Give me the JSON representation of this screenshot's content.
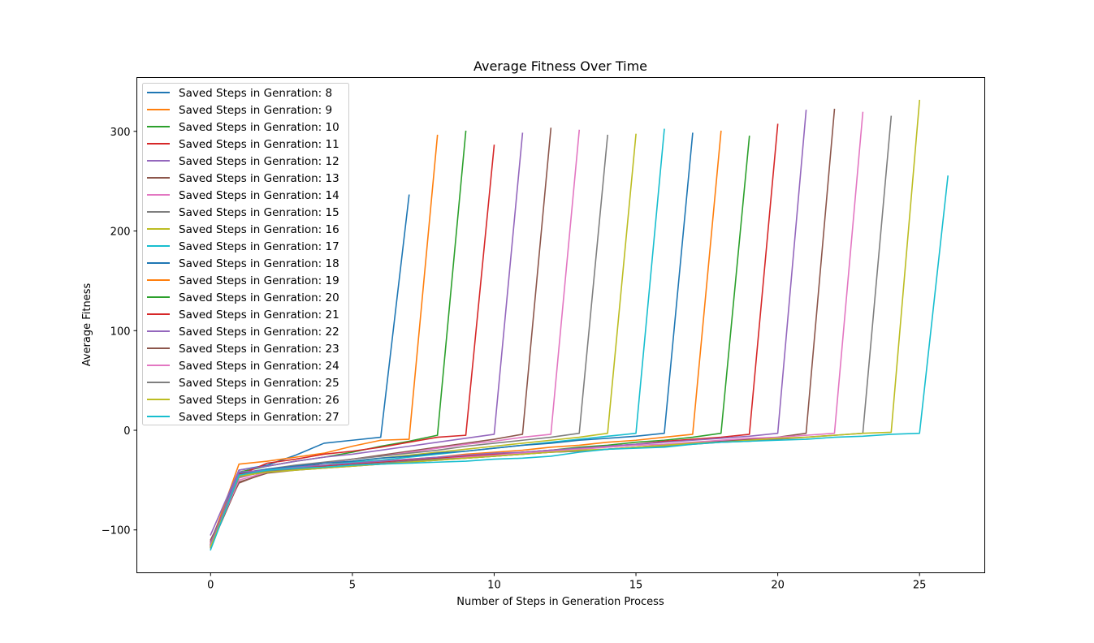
{
  "chart_data": {
    "type": "line",
    "title": "Average Fitness Over Time",
    "xlabel": "Number of Steps in Generation Process",
    "ylabel": "Average Fitness",
    "xlim": [
      -2.6,
      27.3
    ],
    "ylim": [
      -143,
      354
    ],
    "xticks": [
      0,
      5,
      10,
      15,
      20,
      25
    ],
    "yticks": [
      -100,
      0,
      100,
      200,
      300
    ],
    "grid": false,
    "legend_position": "upper-left",
    "series": [
      {
        "name": "Saved Steps in Genration: 8",
        "color": "#1f77b4",
        "x": [
          0,
          1,
          2,
          3,
          4,
          5,
          6,
          7
        ],
        "y": [
          -112,
          -40,
          -35,
          -25,
          -13,
          -10,
          -7,
          236
        ]
      },
      {
        "name": "Saved Steps in Genration: 9",
        "color": "#ff7f0e",
        "x": [
          0,
          1,
          2,
          3,
          4,
          5,
          6,
          7,
          8
        ],
        "y": [
          -114,
          -34,
          -31,
          -27,
          -23,
          -16,
          -10,
          -9,
          296
        ]
      },
      {
        "name": "Saved Steps in Genration: 10",
        "color": "#2ca02c",
        "x": [
          0,
          1,
          2,
          3,
          4,
          5,
          6,
          7,
          8,
          9
        ],
        "y": [
          -116,
          -42,
          -36,
          -31,
          -27,
          -22,
          -16,
          -11,
          -5,
          300
        ]
      },
      {
        "name": "Saved Steps in Genration: 11",
        "color": "#d62728",
        "x": [
          0,
          1,
          2,
          3,
          4,
          5,
          6,
          7,
          8,
          9,
          10
        ],
        "y": [
          -112,
          -45,
          -33,
          -29,
          -24,
          -21,
          -17,
          -12,
          -7,
          -5,
          286
        ]
      },
      {
        "name": "Saved Steps in Genration: 12",
        "color": "#9467bd",
        "x": [
          0,
          1,
          2,
          3,
          4,
          5,
          6,
          7,
          8,
          9,
          10,
          11
        ],
        "y": [
          -105,
          -40,
          -36,
          -31,
          -27,
          -24,
          -20,
          -16,
          -12,
          -8,
          -4,
          298
        ]
      },
      {
        "name": "Saved Steps in Genration: 13",
        "color": "#8c564b",
        "x": [
          0,
          1,
          2,
          3,
          4,
          5,
          6,
          7,
          8,
          9,
          10,
          11,
          12
        ],
        "y": [
          -110,
          -53,
          -42,
          -38,
          -33,
          -29,
          -25,
          -21,
          -17,
          -13,
          -9,
          -4,
          303
        ]
      },
      {
        "name": "Saved Steps in Genration: 14",
        "color": "#e377c2",
        "x": [
          0,
          1,
          2,
          3,
          4,
          5,
          6,
          7,
          8,
          9,
          10,
          11,
          12,
          13
        ],
        "y": [
          -113,
          -48,
          -40,
          -36,
          -33,
          -29,
          -26,
          -22,
          -18,
          -14,
          -11,
          -7,
          -4,
          301
        ]
      },
      {
        "name": "Saved Steps in Genration: 15",
        "color": "#7f7f7f",
        "x": [
          0,
          1,
          2,
          3,
          4,
          5,
          6,
          7,
          8,
          9,
          10,
          11,
          12,
          13,
          14
        ],
        "y": [
          -115,
          -44,
          -39,
          -35,
          -32,
          -29,
          -26,
          -23,
          -20,
          -16,
          -13,
          -10,
          -7,
          -3,
          296
        ]
      },
      {
        "name": "Saved Steps in Genration: 16",
        "color": "#bcbd22",
        "x": [
          0,
          1,
          2,
          3,
          4,
          5,
          6,
          7,
          8,
          9,
          10,
          11,
          12,
          13,
          14,
          15
        ],
        "y": [
          -114,
          -46,
          -41,
          -38,
          -35,
          -31,
          -28,
          -25,
          -22,
          -19,
          -16,
          -13,
          -10,
          -7,
          -3,
          297
        ]
      },
      {
        "name": "Saved Steps in Genration: 17",
        "color": "#17becf",
        "x": [
          0,
          1,
          2,
          3,
          4,
          5,
          6,
          7,
          8,
          9,
          10,
          11,
          12,
          13,
          14,
          15,
          16
        ],
        "y": [
          -117,
          -45,
          -40,
          -37,
          -35,
          -32,
          -30,
          -27,
          -24,
          -21,
          -18,
          -15,
          -12,
          -9,
          -6,
          -3,
          302
        ]
      },
      {
        "name": "Saved Steps in Genration: 18",
        "color": "#1f77b4",
        "x": [
          0,
          1,
          2,
          3,
          4,
          5,
          6,
          7,
          8,
          9,
          10,
          11,
          12,
          13,
          14,
          15,
          16,
          17
        ],
        "y": [
          -116,
          -43,
          -39,
          -36,
          -33,
          -31,
          -28,
          -26,
          -23,
          -21,
          -18,
          -15,
          -13,
          -10,
          -8,
          -6,
          -3,
          298
        ]
      },
      {
        "name": "Saved Steps in Genration: 19",
        "color": "#ff7f0e",
        "x": [
          0,
          1,
          2,
          3,
          4,
          5,
          6,
          7,
          8,
          9,
          10,
          11,
          12,
          13,
          14,
          15,
          16,
          17,
          18
        ],
        "y": [
          -118,
          -45,
          -41,
          -38,
          -36,
          -33,
          -31,
          -29,
          -27,
          -24,
          -22,
          -20,
          -17,
          -15,
          -12,
          -10,
          -7,
          -4,
          300
        ]
      },
      {
        "name": "Saved Steps in Genration: 20",
        "color": "#2ca02c",
        "x": [
          0,
          1,
          2,
          3,
          4,
          5,
          6,
          7,
          8,
          9,
          10,
          11,
          12,
          13,
          14,
          15,
          16,
          17,
          18,
          19
        ],
        "y": [
          -117,
          -46,
          -42,
          -39,
          -37,
          -35,
          -33,
          -31,
          -29,
          -27,
          -25,
          -22,
          -20,
          -17,
          -15,
          -12,
          -10,
          -7,
          -3,
          295
        ]
      },
      {
        "name": "Saved Steps in Genration: 21",
        "color": "#d62728",
        "x": [
          0,
          1,
          2,
          3,
          4,
          5,
          6,
          7,
          8,
          9,
          10,
          11,
          12,
          13,
          14,
          15,
          16,
          17,
          18,
          19,
          20
        ],
        "y": [
          -115,
          -44,
          -41,
          -38,
          -36,
          -34,
          -32,
          -30,
          -28,
          -26,
          -24,
          -22,
          -20,
          -18,
          -16,
          -14,
          -11,
          -9,
          -7,
          -4,
          307
        ]
      },
      {
        "name": "Saved Steps in Genration: 22",
        "color": "#9467bd",
        "x": [
          0,
          1,
          2,
          3,
          4,
          5,
          6,
          7,
          8,
          9,
          10,
          11,
          12,
          13,
          14,
          15,
          16,
          17,
          18,
          19,
          20,
          21
        ],
        "y": [
          -114,
          -42,
          -40,
          -37,
          -35,
          -33,
          -31,
          -29,
          -27,
          -25,
          -23,
          -22,
          -20,
          -18,
          -16,
          -14,
          -12,
          -10,
          -8,
          -6,
          -3,
          321
        ]
      },
      {
        "name": "Saved Steps in Genration: 23",
        "color": "#8c564b",
        "x": [
          0,
          1,
          2,
          3,
          4,
          5,
          6,
          7,
          8,
          9,
          10,
          11,
          12,
          13,
          14,
          15,
          16,
          17,
          18,
          19,
          20,
          21,
          22
        ],
        "y": [
          -117,
          -52,
          -43,
          -40,
          -38,
          -36,
          -34,
          -32,
          -30,
          -28,
          -26,
          -24,
          -22,
          -21,
          -19,
          -17,
          -15,
          -13,
          -11,
          -9,
          -7,
          -3,
          322
        ]
      },
      {
        "name": "Saved Steps in Genration: 24",
        "color": "#e377c2",
        "x": [
          0,
          1,
          2,
          3,
          4,
          5,
          6,
          7,
          8,
          9,
          10,
          11,
          12,
          13,
          14,
          15,
          16,
          17,
          18,
          19,
          20,
          21,
          22,
          23
        ],
        "y": [
          -116,
          -50,
          -42,
          -39,
          -37,
          -35,
          -33,
          -31,
          -29,
          -27,
          -25,
          -23,
          -21,
          -19,
          -17,
          -15,
          -14,
          -12,
          -10,
          -8,
          -7,
          -5,
          -3,
          319
        ]
      },
      {
        "name": "Saved Steps in Genration: 25",
        "color": "#7f7f7f",
        "x": [
          0,
          1,
          2,
          3,
          4,
          5,
          6,
          7,
          8,
          9,
          10,
          11,
          12,
          13,
          14,
          15,
          16,
          17,
          18,
          19,
          20,
          21,
          22,
          23,
          24
        ],
        "y": [
          -118,
          -47,
          -41,
          -39,
          -37,
          -35,
          -33,
          -31,
          -29,
          -28,
          -26,
          -24,
          -22,
          -21,
          -19,
          -17,
          -16,
          -14,
          -12,
          -11,
          -9,
          -7,
          -5,
          -3,
          315
        ]
      },
      {
        "name": "Saved Steps in Genration: 26",
        "color": "#bcbd22",
        "x": [
          0,
          1,
          2,
          3,
          4,
          5,
          6,
          7,
          8,
          9,
          10,
          11,
          12,
          13,
          14,
          15,
          16,
          17,
          18,
          19,
          20,
          21,
          22,
          23,
          24,
          25
        ],
        "y": [
          -117,
          -46,
          -42,
          -40,
          -38,
          -36,
          -34,
          -32,
          -30,
          -28,
          -26,
          -24,
          -22,
          -20,
          -19,
          -17,
          -15,
          -13,
          -12,
          -10,
          -8,
          -7,
          -5,
          -3,
          -2,
          331
        ]
      },
      {
        "name": "Saved Steps in Genration: 27",
        "color": "#17becf",
        "x": [
          0,
          1,
          2,
          3,
          4,
          5,
          6,
          7,
          8,
          9,
          10,
          11,
          12,
          13,
          14,
          15,
          16,
          17,
          18,
          19,
          20,
          21,
          22,
          23,
          24,
          25,
          26
        ],
        "y": [
          -120,
          -45,
          -40,
          -38,
          -37,
          -35,
          -34,
          -33,
          -32,
          -31,
          -29,
          -28,
          -26,
          -22,
          -19,
          -18,
          -17,
          -14,
          -12,
          -11,
          -10,
          -9,
          -7,
          -6,
          -4,
          -3,
          255
        ]
      }
    ]
  }
}
